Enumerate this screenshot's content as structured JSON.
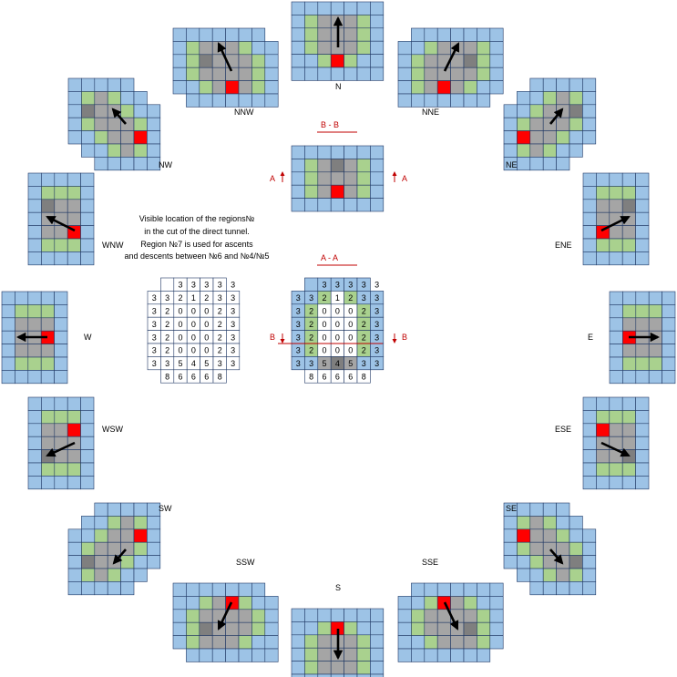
{
  "directions": {
    "N": "N",
    "NNE": "NNE",
    "NE": "NE",
    "ENE": "ENE",
    "E": "E",
    "ESE": "ESE",
    "SE": "SE",
    "SSE": "SSE",
    "S": "S",
    "SSW": "SSW",
    "SW": "SW",
    "WSW": "WSW",
    "W": "W",
    "WNW": "WNW",
    "NW": "NW",
    "NNW": "NNW"
  },
  "section_bb": {
    "title": "B  -  B",
    "marker_left": "A",
    "marker_right": "A"
  },
  "section_aa": {
    "title": "A  -  A",
    "marker_left": "B",
    "marker_right": "B"
  },
  "note": [
    "Visible location of the regions№",
    "in the cut of the direct tunnel.",
    "Region №7 is used for ascents",
    "and descents between №6 and №4/№5"
  ],
  "region_table": [
    [
      "",
      "",
      "3",
      "3",
      "3",
      "3",
      "3",
      ""
    ],
    [
      "3",
      "3",
      "2",
      "1",
      "2",
      "3",
      "3",
      ""
    ],
    [
      "3",
      "2",
      "0",
      "0",
      "0",
      "2",
      "3",
      ""
    ],
    [
      "3",
      "2",
      "0",
      "0",
      "0",
      "2",
      "3",
      ""
    ],
    [
      "3",
      "2",
      "0",
      "0",
      "0",
      "2",
      "3",
      ""
    ],
    [
      "3",
      "2",
      "0",
      "0",
      "0",
      "2",
      "3",
      ""
    ],
    [
      "3",
      "3",
      "5",
      "4",
      "5",
      "3",
      "3",
      ""
    ],
    [
      "",
      "8",
      "6",
      "6",
      "6",
      "8",
      "",
      ""
    ]
  ],
  "colors": {
    "blue": "#9dc3e6",
    "green": "#a9d18e",
    "gray": "#a5a5a5",
    "dark_gray": "#7f7f7f",
    "red": "#ff0000",
    "white": "#ffffff",
    "grid_line": "#203864",
    "section_text": "#c00000"
  }
}
